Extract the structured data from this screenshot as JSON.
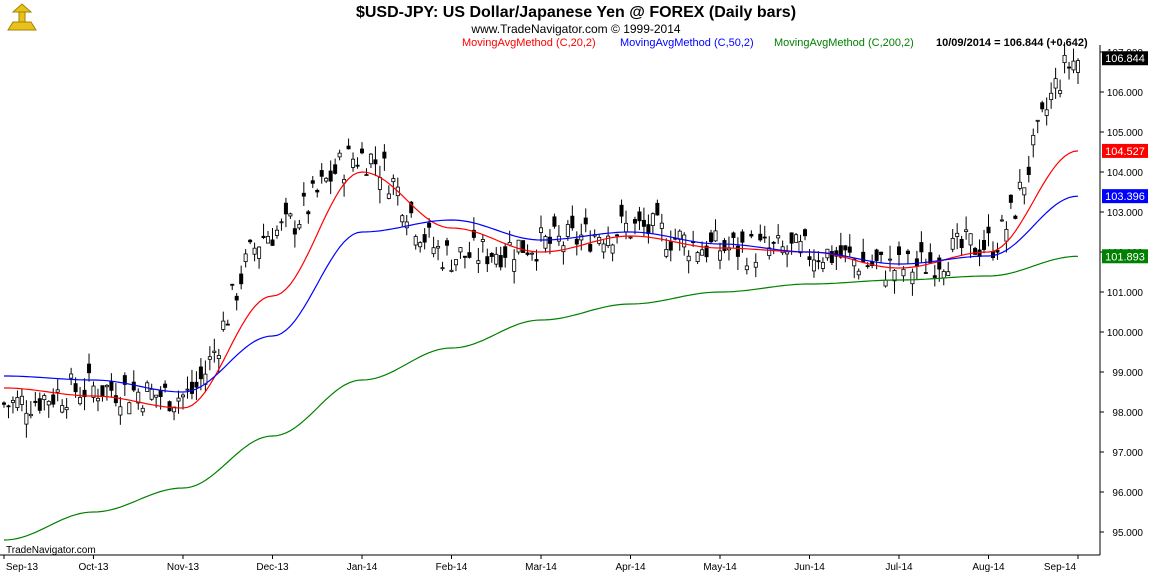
{
  "header": {
    "title": "$USD-JPY:  US Dollar/Japanese Yen @ FOREX  (Daily bars)",
    "subtitle": "www.TradeNavigator.com © 1999-2014",
    "last_value": "10/09/2014 = 106.844 (+0.642)",
    "watermark": "TradeNavigator.com"
  },
  "colors": {
    "ma20": "#ff0000",
    "ma50": "#0000ff",
    "ma200": "#008000",
    "candle": "#000000"
  },
  "chart_data": {
    "type": "line",
    "title": "$USD-JPY:  US Dollar/Japanese Yen @ FOREX  (Daily bars)",
    "x_labels": [
      "Sep-13",
      "Oct-13",
      "Nov-13",
      "Dec-13",
      "Jan-14",
      "Feb-14",
      "Mar-14",
      "Apr-14",
      "May-14",
      "Jun-14",
      "Jul-14",
      "Aug-14",
      "Sep-14"
    ],
    "y_ticks": [
      "95.000",
      "96.000",
      "97.000",
      "98.000",
      "99.000",
      "100.000",
      "101.000",
      "102.000",
      "103.000",
      "104.000",
      "105.000",
      "106.000",
      "107.000"
    ],
    "ylim": [
      94.6,
      107.1
    ],
    "series_points": 13,
    "price_anchors": [
      98.2,
      98.6,
      98.4,
      102.5,
      104.4,
      101.9,
      102.2,
      102.6,
      102.1,
      102.0,
      101.6,
      102.2,
      106.8
    ],
    "series": [
      {
        "name": "MovingAvgMethod (C,20,2)",
        "color": "#ff0000",
        "values": [
          98.6,
          98.4,
          98.1,
          100.9,
          104.0,
          102.6,
          102.0,
          102.4,
          102.1,
          102.0,
          101.6,
          102.0,
          104.527
        ]
      },
      {
        "name": "MovingAvgMethod (C,50,2)",
        "color": "#0000ff",
        "values": [
          98.9,
          98.8,
          98.5,
          99.9,
          102.5,
          102.8,
          102.3,
          102.5,
          102.2,
          102.0,
          101.7,
          101.9,
          103.396
        ]
      },
      {
        "name": "MovingAvgMethod (C,200,2)",
        "color": "#008000",
        "values": [
          94.8,
          95.5,
          96.1,
          97.4,
          98.8,
          99.6,
          100.3,
          100.7,
          101.0,
          101.2,
          101.3,
          101.4,
          101.893
        ]
      }
    ],
    "last_values": [
      {
        "label": "106.844",
        "value": 106.844,
        "bg": "#000000",
        "fg": "#ffffff"
      },
      {
        "label": "104.527",
        "value": 104.527,
        "bg": "#ff0000",
        "fg": "#ffffff"
      },
      {
        "label": "103.396",
        "value": 103.396,
        "bg": "#0000ff",
        "fg": "#ffffff"
      },
      {
        "label": "101.893",
        "value": 101.893,
        "bg": "#008000",
        "fg": "#ffffff"
      }
    ],
    "grid": false
  }
}
